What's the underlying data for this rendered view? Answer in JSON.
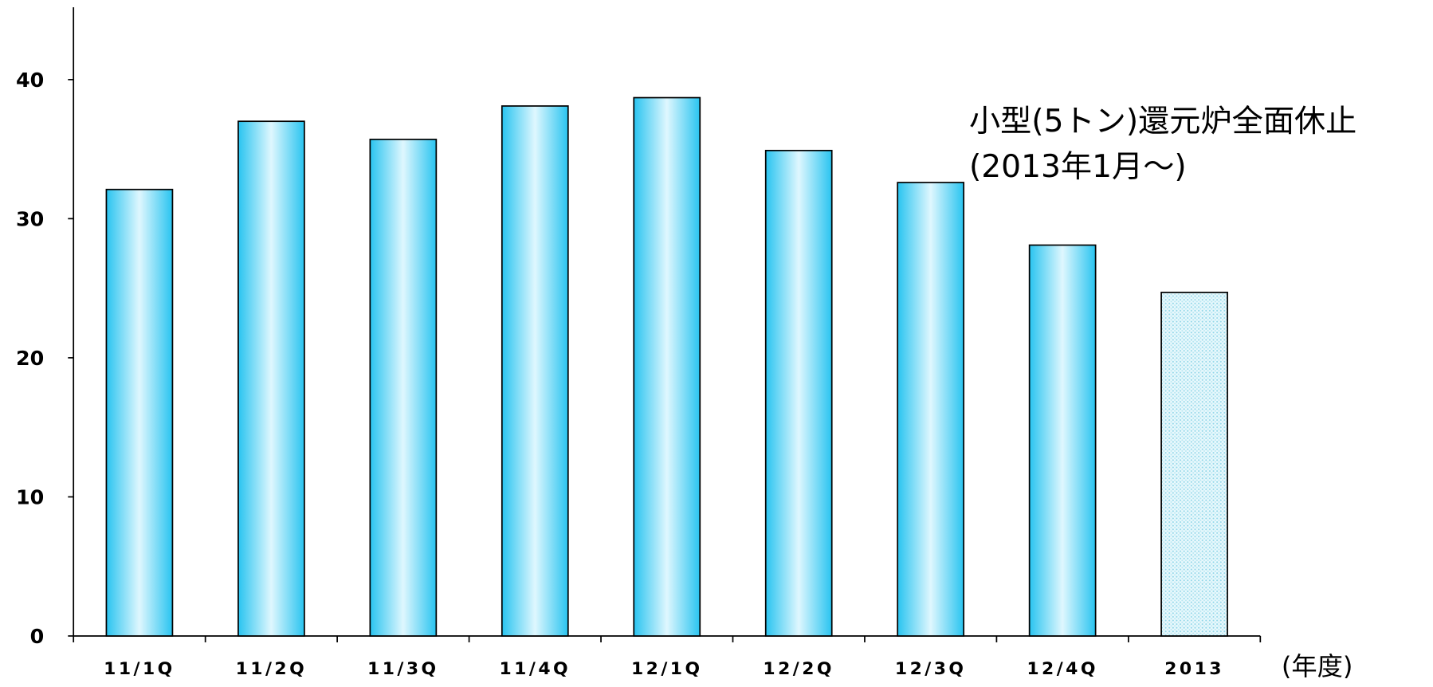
{
  "chart_data": {
    "type": "bar",
    "categories": [
      "11/1Q",
      "11/2Q",
      "11/3Q",
      "11/4Q",
      "12/1Q",
      "12/2Q",
      "12/3Q",
      "12/4Q",
      "2013"
    ],
    "values": [
      32.1,
      37.0,
      35.7,
      38.1,
      38.7,
      34.9,
      32.6,
      28.1,
      24.7
    ],
    "styles": [
      "gradient",
      "gradient",
      "gradient",
      "gradient",
      "gradient",
      "gradient",
      "gradient",
      "gradient",
      "dotted"
    ],
    "color": "#29c4f0",
    "ylim": [
      0,
      45
    ],
    "yticks": [
      0,
      10,
      20,
      30,
      40
    ],
    "grid": false,
    "x_label": "(年度)",
    "annotation": [
      "小型(5トン)還元炉全面休止",
      "(2013年1月～)"
    ]
  }
}
